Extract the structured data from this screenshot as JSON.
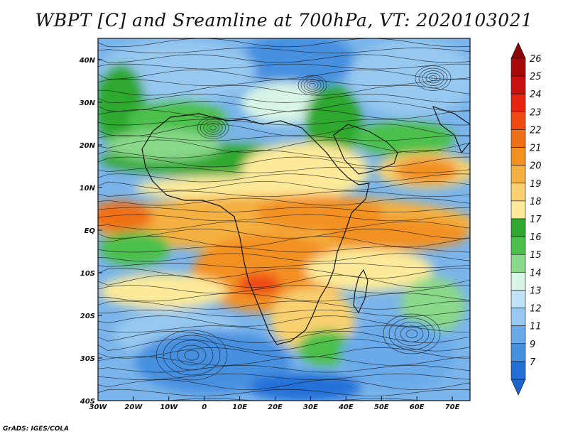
{
  "title": "WBPT [C] and Sreamline at 700hPa, VT: 2020103021",
  "footer": "GrADS: IGES/COLA",
  "map": {
    "lon_range": [
      -30,
      75
    ],
    "lat_range": [
      -40,
      45
    ],
    "lat_ticks": [
      {
        "value": 40,
        "label": "40N"
      },
      {
        "value": 30,
        "label": "30N"
      },
      {
        "value": 20,
        "label": "20N"
      },
      {
        "value": 10,
        "label": "10N"
      },
      {
        "value": 0,
        "label": "EQ"
      },
      {
        "value": -10,
        "label": "10S"
      },
      {
        "value": -20,
        "label": "20S"
      },
      {
        "value": -30,
        "label": "30S"
      },
      {
        "value": -40,
        "label": "40S"
      }
    ],
    "lon_ticks": [
      {
        "value": -30,
        "label": "30W"
      },
      {
        "value": -20,
        "label": "20W"
      },
      {
        "value": -10,
        "label": "10W"
      },
      {
        "value": 0,
        "label": "0"
      },
      {
        "value": 10,
        "label": "10E"
      },
      {
        "value": 20,
        "label": "20E"
      },
      {
        "value": 30,
        "label": "30E"
      },
      {
        "value": 40,
        "label": "40E"
      },
      {
        "value": 50,
        "label": "50E"
      },
      {
        "value": 60,
        "label": "60E"
      },
      {
        "value": 70,
        "label": "70E"
      }
    ]
  },
  "colorbar": {
    "levels": [
      "26",
      "25",
      "24",
      "23",
      "22",
      "21",
      "20",
      "19",
      "18",
      "17",
      "16",
      "15",
      "14",
      "13",
      "12",
      "11",
      "9",
      "7"
    ],
    "colors": [
      "#a60a0a",
      "#c81010",
      "#e6260f",
      "#ee4a12",
      "#f07018",
      "#f29020",
      "#f4b040",
      "#f8d070",
      "#fcea9a",
      "#2ea82e",
      "#4cc04c",
      "#8ad88a",
      "#d8f4e6",
      "#c0e2f6",
      "#96c8f0",
      "#6aaaea",
      "#4690e0",
      "#2070d8"
    ]
  }
}
